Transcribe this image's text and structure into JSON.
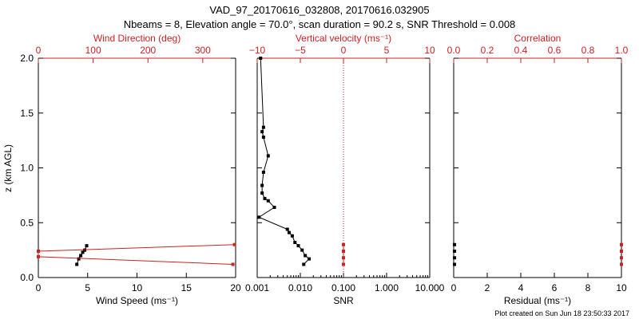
{
  "title_line1": "VAD_97_20170616_032808, 20170616.032905",
  "title_line2": "Nbeams = 8, Elevation angle = 70.0°, scan duration = 90.2 s, SNR Threshold = 0.008",
  "footer": "Plot created on Sun Jun 18 23:50:33 2017",
  "colors": {
    "axis": "#000000",
    "accent": "#cc2222",
    "data": "#000000"
  },
  "chart_data": [
    {
      "type": "line",
      "name": "wind-panel",
      "title": "",
      "ylabel": "z (km AGL)",
      "ylim": [
        0,
        2.0
      ],
      "yticks": [
        0.0,
        0.5,
        1.0,
        1.5,
        2.0
      ],
      "ytick_labels": [
        "0.0",
        "0.5",
        "1.0",
        "1.5",
        "2.0"
      ],
      "bottom_axis": {
        "label": "Wind Speed (ms⁻¹)",
        "lim": [
          0,
          20
        ],
        "ticks": [
          0,
          5,
          10,
          15,
          20
        ],
        "tick_labels": [
          "0",
          "5",
          "10",
          "15",
          "20"
        ]
      },
      "top_axis": {
        "label": "Wind Direction (deg)",
        "lim": [
          0,
          360
        ],
        "ticks": [
          0,
          100,
          200,
          300
        ],
        "tick_labels": [
          "0",
          "100",
          "200",
          "300"
        ]
      },
      "series": [
        {
          "name": "Wind Speed",
          "axis": "bottom",
          "color": "#000000",
          "x": [
            3.9,
            4.1,
            4.3,
            4.5,
            4.7,
            4.9
          ],
          "y": [
            0.12,
            0.17,
            0.2,
            0.23,
            0.25,
            0.29
          ]
        },
        {
          "name": "Wind Direction",
          "axis": "top",
          "color": "#cc2222",
          "x": [
            355,
            0,
            0,
            358
          ],
          "y": [
            0.12,
            0.19,
            0.24,
            0.3
          ]
        }
      ]
    },
    {
      "type": "line",
      "name": "snr-panel",
      "ylim": [
        0,
        2.0
      ],
      "bottom_axis": {
        "label": "SNR",
        "scale": "log",
        "lim": [
          0.001,
          10
        ],
        "ticks": [
          0.001,
          0.01,
          0.1,
          1,
          10
        ],
        "tick_labels": [
          "0.001",
          "0.010",
          "0.100",
          "1.000",
          "10.000"
        ]
      },
      "top_axis": {
        "label": "Vertical velocity (ms⁻¹)",
        "lim": [
          -10,
          10
        ],
        "ticks": [
          -10,
          -5,
          0,
          5,
          10
        ],
        "tick_labels": [
          "−10",
          "−5",
          "0",
          "5",
          "10"
        ]
      },
      "reference_line": {
        "axis": "top",
        "value": 0,
        "style": "dotted"
      },
      "series": [
        {
          "name": "SNR",
          "axis": "bottom",
          "color": "#000000",
          "x": [
            0.0012,
            0.0014,
            0.0013,
            0.0014,
            0.0018,
            0.0014,
            0.0013,
            0.0013,
            0.0015,
            0.0018,
            0.0025,
            0.0011,
            0.005,
            0.0055,
            0.0065,
            0.0075,
            0.009,
            0.011,
            0.013,
            0.016,
            0.012
          ],
          "y": [
            2.0,
            1.37,
            1.33,
            1.28,
            1.11,
            0.96,
            0.84,
            0.77,
            0.72,
            0.7,
            0.64,
            0.55,
            0.44,
            0.41,
            0.38,
            0.32,
            0.29,
            0.25,
            0.2,
            0.17,
            0.12
          ]
        },
        {
          "name": "Vertical velocity",
          "axis": "top",
          "color": "#cc2222",
          "x": [
            0,
            0,
            0,
            0
          ],
          "y": [
            0.12,
            0.18,
            0.24,
            0.3
          ]
        }
      ]
    },
    {
      "type": "scatter",
      "name": "residual-panel",
      "ylim": [
        0,
        2.0
      ],
      "bottom_axis": {
        "label": "Residual (ms⁻¹)",
        "lim": [
          0,
          10
        ],
        "ticks": [
          0,
          2,
          4,
          6,
          8,
          10
        ],
        "tick_labels": [
          "0",
          "2",
          "4",
          "6",
          "8",
          "10"
        ]
      },
      "top_axis": {
        "label": "Correlation",
        "lim": [
          0,
          1
        ],
        "ticks": [
          0,
          0.2,
          0.4,
          0.6,
          0.8,
          1.0
        ],
        "tick_labels": [
          "0.0",
          "0.2",
          "0.4",
          "0.6",
          "0.8",
          "1.0"
        ]
      },
      "series": [
        {
          "name": "Residual",
          "axis": "bottom",
          "color": "#000000",
          "x": [
            0.05,
            0.05,
            0.05,
            0.05
          ],
          "y": [
            0.12,
            0.18,
            0.24,
            0.3
          ]
        },
        {
          "name": "Correlation",
          "axis": "top",
          "color": "#cc2222",
          "x": [
            1.0,
            1.0,
            1.0,
            1.0
          ],
          "y": [
            0.12,
            0.18,
            0.24,
            0.3
          ]
        }
      ]
    }
  ]
}
